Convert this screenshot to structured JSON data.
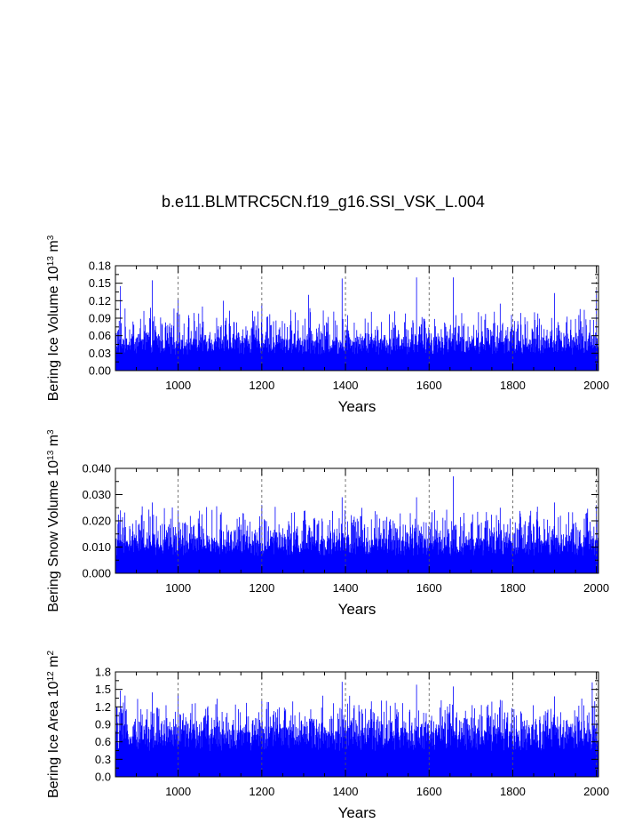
{
  "title": "b.e11.BLMTRC5CN.f19_g16.SSI_VSK_L.004",
  "colors": {
    "series": "#0000ff",
    "grid": "#555555",
    "axis": "#000000"
  },
  "chart_data": [
    {
      "type": "bar",
      "ylabel_parts": {
        "name": "Bering Ice Volume",
        "scale_base": "10",
        "scale_exp": "13",
        "unit_base": "m",
        "unit_exp": "3"
      },
      "xlabel": "Years",
      "xlim": [
        850,
        2005
      ],
      "ylim": [
        0,
        0.18
      ],
      "x_ticks": [
        "1000",
        "1200",
        "1400",
        "1600",
        "1800",
        "2000"
      ],
      "y_ticks": [
        "0.00",
        "0.03",
        "0.06",
        "0.09",
        "0.12",
        "0.15",
        "0.18"
      ],
      "grid": "vertical dashed at major x ticks",
      "baseline": 0.05,
      "amplitude": 0.025,
      "peaks": [
        [
          862,
          0.145
        ],
        [
          938,
          0.155
        ],
        [
          1000,
          0.122
        ],
        [
          1108,
          0.12
        ],
        [
          1200,
          0.115
        ],
        [
          1312,
          0.13
        ],
        [
          1392,
          0.158
        ],
        [
          1570,
          0.16
        ],
        [
          1658,
          0.16
        ],
        [
          1770,
          0.115
        ],
        [
          1900,
          0.133
        ],
        [
          2000,
          0.138
        ]
      ]
    },
    {
      "type": "bar",
      "ylabel_parts": {
        "name": "Bering Snow Volume",
        "scale_base": "10",
        "scale_exp": "13",
        "unit_base": "m",
        "unit_exp": "3"
      },
      "xlabel": "Years",
      "xlim": [
        850,
        2005
      ],
      "ylim": [
        0,
        0.04
      ],
      "x_ticks": [
        "1000",
        "1200",
        "1400",
        "1600",
        "1800",
        "2000"
      ],
      "y_ticks": [
        "0.000",
        "0.010",
        "0.020",
        "0.030",
        "0.040"
      ],
      "grid": "vertical dashed at major x ticks",
      "baseline": 0.012,
      "amplitude": 0.006,
      "peaks": [
        [
          862,
          0.024
        ],
        [
          938,
          0.027
        ],
        [
          1000,
          0.024
        ],
        [
          1200,
          0.026
        ],
        [
          1392,
          0.029
        ],
        [
          1570,
          0.029
        ],
        [
          1658,
          0.037
        ],
        [
          1770,
          0.025
        ],
        [
          1900,
          0.027
        ],
        [
          2000,
          0.026
        ]
      ]
    },
    {
      "type": "bar",
      "ylabel_parts": {
        "name": "Bering Ice Area",
        "scale_base": "10",
        "scale_exp": "12",
        "unit_base": "m",
        "unit_exp": "2"
      },
      "xlabel": "Years",
      "xlim": [
        850,
        2005
      ],
      "ylim": [
        0,
        1.8
      ],
      "x_ticks": [
        "1000",
        "1200",
        "1400",
        "1600",
        "1800",
        "2000"
      ],
      "y_ticks": [
        "0.0",
        "0.3",
        "0.6",
        "0.9",
        "1.2",
        "1.5",
        "1.8"
      ],
      "grid": "vertical dashed at major x ticks",
      "baseline": 0.8,
      "amplitude": 0.25,
      "peaks": [
        [
          862,
          1.48
        ],
        [
          938,
          1.45
        ],
        [
          1000,
          1.42
        ],
        [
          1200,
          1.3
        ],
        [
          1392,
          1.63
        ],
        [
          1570,
          1.58
        ],
        [
          1658,
          1.55
        ],
        [
          1770,
          1.32
        ],
        [
          1900,
          1.38
        ],
        [
          1990,
          1.62
        ]
      ]
    }
  ]
}
